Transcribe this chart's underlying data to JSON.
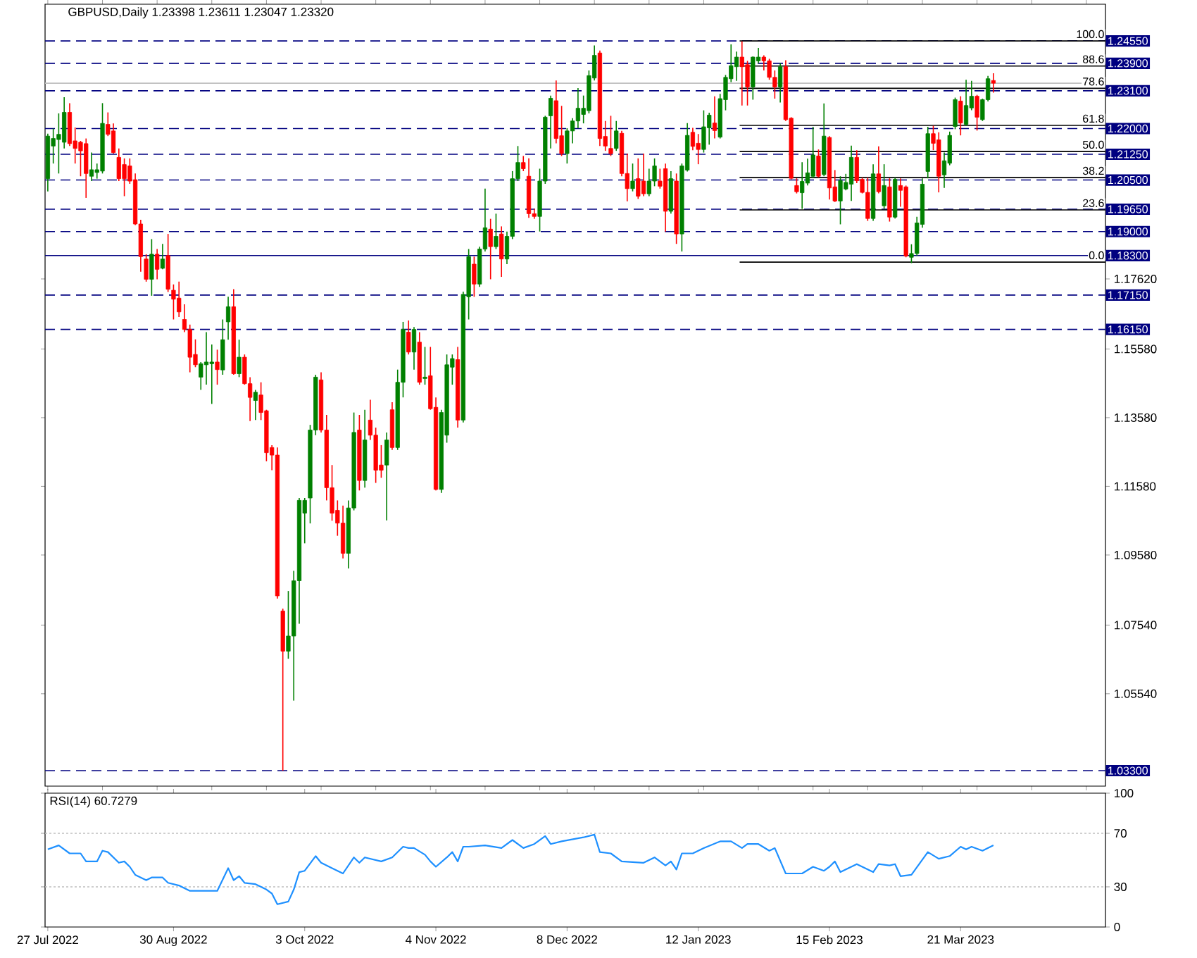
{
  "chart_data": [
    {
      "type": "candlestick",
      "title": "GBPUSD,Daily  1.23398 1.23611 1.23047 1.23320",
      "categories": [
        null,
        null,
        null,
        null,
        null,
        null,
        null,
        null,
        null,
        null,
        null,
        null,
        null,
        null,
        null,
        null,
        null,
        null,
        null,
        null,
        null,
        null,
        null,
        null,
        null,
        null,
        null,
        null,
        null,
        null,
        null,
        null,
        null,
        null,
        null,
        null,
        null,
        null,
        null,
        null,
        null,
        null,
        null,
        null,
        null,
        null,
        null,
        null,
        null,
        null,
        null,
        null,
        null,
        null,
        null,
        null,
        null,
        null,
        null,
        null,
        null,
        null,
        null,
        null,
        null,
        null,
        null,
        null,
        null,
        null,
        null,
        null,
        null,
        null,
        null,
        null,
        null,
        null,
        null,
        null,
        null,
        null,
        null,
        null,
        null,
        null,
        null,
        null,
        null,
        null,
        null,
        null,
        null,
        null,
        null,
        null,
        null,
        null,
        null,
        null,
        null,
        null,
        null,
        null,
        null,
        null,
        null,
        null,
        null,
        null,
        null,
        null,
        null,
        null,
        null,
        null,
        null,
        null,
        null,
        null,
        null,
        null,
        null,
        null,
        null,
        null,
        null,
        null,
        null,
        null,
        null,
        null,
        null,
        null,
        null,
        null,
        null,
        null,
        null,
        null,
        null,
        null,
        null,
        null,
        null,
        null,
        null,
        null,
        null,
        null,
        null,
        null,
        null,
        null,
        null,
        null,
        null,
        null,
        null,
        null,
        null,
        null,
        null,
        null,
        null,
        null,
        null,
        null,
        null,
        null,
        null,
        null,
        null,
        null,
        null,
        null,
        null,
        null,
        null,
        null,
        null,
        null,
        null,
        null,
        null,
        null,
        null,
        null,
        null,
        null,
        null,
        null,
        null,
        null
      ],
      "ohlc": [
        [
          1.2054,
          1.2185,
          1.2017,
          1.2178
        ],
        [
          1.2149,
          1.22,
          1.2098,
          1.2171
        ],
        [
          1.2168,
          1.2244,
          1.2069,
          1.2183
        ],
        [
          1.216,
          1.2291,
          1.2142,
          1.2247
        ],
        [
          1.2247,
          1.2274,
          1.2149,
          1.2156
        ],
        [
          1.2164,
          1.2203,
          1.2098,
          1.2142
        ],
        [
          1.216,
          1.2164,
          1.2061,
          1.2135
        ],
        [
          1.2156,
          1.2171,
          1.1998,
          1.2069
        ],
        [
          1.2061,
          1.213,
          1.2047,
          1.208
        ],
        [
          1.2072,
          1.2098,
          1.2054,
          1.208
        ],
        [
          1.2076,
          1.2274,
          1.2069,
          1.2215
        ],
        [
          1.2212,
          1.2247,
          1.2178,
          1.2183
        ],
        [
          1.2193,
          1.2215,
          1.2127,
          1.213
        ],
        [
          1.2116,
          1.2142,
          1.2047,
          1.2054
        ],
        [
          1.2095,
          1.2113,
          1.2003,
          1.2054
        ],
        [
          1.2091,
          1.2113,
          1.2039,
          1.2047
        ],
        [
          1.2051,
          1.2069,
          1.1919,
          1.1922
        ],
        [
          1.1922,
          1.1934,
          1.1783,
          1.1827
        ],
        [
          1.182,
          1.1834,
          1.1754,
          1.1761
        ],
        [
          1.1761,
          1.1878,
          1.1713,
          1.1834
        ],
        [
          1.1834,
          1.1849,
          1.1761,
          1.179
        ],
        [
          1.1793,
          1.1864,
          1.179,
          1.182
        ],
        [
          1.183,
          1.1893,
          1.1724,
          1.1732
        ],
        [
          1.1729,
          1.1746,
          1.1644,
          1.1703
        ],
        [
          1.1706,
          1.1754,
          1.1651,
          1.1666
        ],
        [
          1.1644,
          1.1688,
          1.1607,
          1.1615
        ],
        [
          1.1615,
          1.1629,
          1.149,
          1.1534
        ],
        [
          1.1542,
          1.1586,
          1.1505,
          1.1512
        ],
        [
          1.1476,
          1.152,
          1.1439,
          1.1515
        ],
        [
          1.1512,
          1.1607,
          1.1454,
          1.152
        ],
        [
          1.1515,
          1.1571,
          1.1398,
          1.152
        ],
        [
          1.152,
          1.1556,
          1.1454,
          1.1498
        ],
        [
          1.1497,
          1.1644,
          1.1483,
          1.1585
        ],
        [
          1.1637,
          1.171,
          1.1585,
          1.1681
        ],
        [
          1.1681,
          1.1732,
          1.1483,
          1.1486
        ],
        [
          1.1486,
          1.1585,
          1.1476,
          1.1534
        ],
        [
          1.1534,
          1.1542,
          1.1454,
          1.1457
        ],
        [
          1.1457,
          1.1476,
          1.1348,
          1.1417
        ],
        [
          1.1408,
          1.1439,
          1.1351,
          1.1432
        ],
        [
          1.1424,
          1.1461,
          1.1351,
          1.1373
        ],
        [
          1.1378,
          1.1381,
          1.1231,
          1.1256
        ],
        [
          1.1271,
          1.1278,
          1.1205,
          1.1249
        ],
        [
          1.1249,
          1.1271,
          1.0831,
          1.0839
        ],
        [
          1.0795,
          1.0802,
          1.033,
          1.0678
        ],
        [
          1.0678,
          1.0853,
          1.0656,
          1.0722
        ],
        [
          1.0722,
          1.0912,
          1.0534,
          1.0883
        ],
        [
          1.0883,
          1.1124,
          1.0758,
          1.1117
        ],
        [
          1.108,
          1.1124,
          1.0992,
          1.1117
        ],
        [
          1.1124,
          1.1337,
          1.105,
          1.1322
        ],
        [
          1.1322,
          1.1483,
          1.1307,
          1.1476
        ],
        [
          1.1468,
          1.149,
          1.1315,
          1.1322
        ],
        [
          1.1322,
          1.1366,
          1.1117,
          1.1154
        ],
        [
          1.1154,
          1.122,
          1.1058,
          1.108
        ],
        [
          1.1088,
          1.1117,
          1.1014,
          1.1051
        ],
        [
          1.1051,
          1.1102,
          1.0948,
          1.0963
        ],
        [
          1.0963,
          1.1117,
          1.0919,
          1.1095
        ],
        [
          1.1095,
          1.1373,
          1.1088,
          1.1315
        ],
        [
          1.1322,
          1.1366,
          1.1146,
          1.1175
        ],
        [
          1.1175,
          1.1381,
          1.1154,
          1.1293
        ],
        [
          1.1351,
          1.141,
          1.1293,
          1.1307
        ],
        [
          1.1307,
          1.1329,
          1.1168,
          1.1205
        ],
        [
          1.122,
          1.1278,
          1.1183,
          1.1205
        ],
        [
          1.122,
          1.1315,
          1.1059,
          1.1293
        ],
        [
          1.1381,
          1.1403,
          1.1264,
          1.1271
        ],
        [
          1.1271,
          1.1498,
          1.1264,
          1.1461
        ],
        [
          1.1461,
          1.1637,
          1.1417,
          1.1615
        ],
        [
          1.1607,
          1.1641,
          1.1542,
          1.1549
        ],
        [
          1.1549,
          1.1622,
          1.1498,
          1.1615
        ],
        [
          1.1578,
          1.1607,
          1.1454,
          1.1461
        ],
        [
          1.1472,
          1.1564,
          1.1454,
          1.1476
        ],
        [
          1.148,
          1.1564,
          1.1381,
          1.1384
        ],
        [
          1.1388,
          1.1417,
          1.1146,
          1.1149
        ],
        [
          1.1149,
          1.1381,
          1.1139,
          1.1373
        ],
        [
          1.1307,
          1.1542,
          1.1285,
          1.1512
        ],
        [
          1.1505,
          1.1542,
          1.1454,
          1.153
        ],
        [
          1.1527,
          1.1564,
          1.1329,
          1.1351
        ],
        [
          1.1351,
          1.1725,
          1.1344,
          1.1717
        ],
        [
          1.171,
          1.1849,
          1.1644,
          1.1827
        ],
        [
          1.1805,
          1.1827,
          1.171,
          1.1747
        ],
        [
          1.1747,
          1.1856,
          1.1739,
          1.1849
        ],
        [
          1.1849,
          1.2025,
          1.1842,
          1.1911
        ],
        [
          1.1907,
          1.1937,
          1.1761,
          1.1856
        ],
        [
          1.1856,
          1.1952,
          1.1849,
          1.1886
        ],
        [
          1.1893,
          1.1915,
          1.1768,
          1.182
        ],
        [
          1.182,
          1.19,
          1.1805,
          1.1886
        ],
        [
          1.1886,
          1.2076,
          1.1878,
          1.2054
        ],
        [
          1.2054,
          1.2149,
          1.2047,
          1.2101
        ],
        [
          1.2101,
          1.212,
          1.2076,
          1.2083
        ],
        [
          1.2061,
          1.2113,
          1.194,
          1.1952
        ],
        [
          1.1952,
          1.1966,
          1.1937,
          1.1944
        ],
        [
          1.1944,
          1.2083,
          1.19,
          1.2047
        ],
        [
          1.2047,
          1.2237,
          1.2039,
          1.2233
        ],
        [
          1.2237,
          1.2296,
          1.2142,
          1.2288
        ],
        [
          1.2281,
          1.234,
          1.2157,
          1.2171
        ],
        [
          1.2179,
          1.2266,
          1.212,
          1.2127
        ],
        [
          1.2127,
          1.2201,
          1.2098,
          1.2193
        ],
        [
          1.2193,
          1.223,
          1.2157,
          1.2222
        ],
        [
          1.2222,
          1.2318,
          1.2201,
          1.2259
        ],
        [
          1.2241,
          1.2296,
          1.2215,
          1.2259
        ],
        [
          1.2252,
          1.2369,
          1.2244,
          1.2354
        ],
        [
          1.2347,
          1.2442,
          1.234,
          1.2413
        ],
        [
          1.242,
          1.2427,
          1.2149,
          1.2171
        ],
        [
          1.2177,
          1.2222,
          1.2135,
          1.2149
        ],
        [
          1.2142,
          1.2237,
          1.212,
          1.2127
        ],
        [
          1.2142,
          1.2222,
          1.2135,
          1.2193
        ],
        [
          1.2186,
          1.2193,
          1.2061,
          1.2069
        ],
        [
          1.2069,
          1.2127,
          1.1988,
          1.2025
        ],
        [
          1.2025,
          1.2098,
          1.2017,
          1.2047
        ],
        [
          1.2054,
          1.2113,
          1.1995,
          1.2003
        ],
        [
          1.2047,
          1.2127,
          1.2003,
          1.201
        ],
        [
          1.201,
          1.2083,
          1.2003,
          1.2047
        ],
        [
          1.2047,
          1.2113,
          1.2032,
          1.2091
        ],
        [
          1.2047,
          1.2083,
          1.2025,
          1.2032
        ],
        [
          1.2083,
          1.2098,
          1.19,
          1.1959
        ],
        [
          1.1959,
          1.2076,
          1.1952,
          1.2054
        ],
        [
          1.2047,
          1.2069,
          1.1864,
          1.1893
        ],
        [
          1.1893,
          1.2098,
          1.1842,
          1.2091
        ],
        [
          1.2079,
          1.2216,
          1.2075,
          1.218
        ],
        [
          1.2189,
          1.2202,
          1.2137,
          1.2148
        ],
        [
          1.2157,
          1.2184,
          1.2096,
          1.2139
        ],
        [
          1.2139,
          1.2253,
          1.213,
          1.2205
        ],
        [
          1.2202,
          1.2246,
          1.2153,
          1.2239
        ],
        [
          1.2216,
          1.2294,
          1.2171,
          1.2194
        ],
        [
          1.2175,
          1.2301,
          1.2171,
          1.2287
        ],
        [
          1.2284,
          1.2356,
          1.2253,
          1.2349
        ],
        [
          1.2345,
          1.2445,
          1.2335,
          1.2383
        ],
        [
          1.238,
          1.2424,
          1.2339,
          1.2408
        ],
        [
          1.2408,
          1.2454,
          1.2267,
          1.238
        ],
        [
          1.2386,
          1.2397,
          1.2267,
          1.2321
        ],
        [
          1.2321,
          1.241,
          1.2284,
          1.2408
        ],
        [
          1.2397,
          1.2435,
          1.239,
          1.2408
        ],
        [
          1.2408,
          1.2413,
          1.2369,
          1.2397
        ],
        [
          1.2397,
          1.2403,
          1.2342,
          1.2349
        ],
        [
          1.2349,
          1.2369,
          1.2287,
          1.2321
        ],
        [
          1.2321,
          1.239,
          1.2276,
          1.238
        ],
        [
          1.238,
          1.2399,
          1.2222,
          1.2226
        ],
        [
          1.223,
          1.2233,
          1.2052,
          1.2055
        ],
        [
          1.2034,
          1.2055,
          1.2011,
          1.2016
        ],
        [
          1.2013,
          1.2102,
          1.1966,
          1.2046
        ],
        [
          1.2041,
          1.2112,
          1.2034,
          1.2071
        ],
        [
          1.2061,
          1.2205,
          1.2055,
          1.2123
        ],
        [
          1.212,
          1.2139,
          1.2057,
          1.2061
        ],
        [
          1.2066,
          1.2273,
          1.2061,
          1.2178
        ],
        [
          1.2174,
          1.2178,
          1.1993,
          1.2027
        ],
        [
          1.203,
          1.2079,
          1.1986,
          1.1989
        ],
        [
          1.1989,
          1.2061,
          1.1921,
          1.2048
        ],
        [
          1.2024,
          1.2068,
          1.202,
          1.2043
        ],
        [
          1.2038,
          1.215,
          1.1989,
          1.2116
        ],
        [
          1.2116,
          1.2137,
          1.2041,
          1.2048
        ],
        [
          1.2052,
          1.2057,
          1.2011,
          1.2014
        ],
        [
          1.2014,
          1.2057,
          1.1931,
          1.1938
        ],
        [
          1.1938,
          1.2096,
          1.1931,
          1.2068
        ],
        [
          1.2068,
          1.2148,
          1.2011,
          1.2016
        ],
        [
          1.1975,
          1.2096,
          1.1966,
          1.2034
        ],
        [
          1.203,
          1.2055,
          1.1929,
          1.1942
        ],
        [
          1.1942,
          1.2057,
          1.1938,
          1.2052
        ],
        [
          1.2034,
          1.2055,
          1.1972,
          1.202
        ],
        [
          1.203,
          1.2034,
          1.1825,
          1.1829
        ],
        [
          1.1825,
          1.1863,
          1.1808,
          1.1836
        ],
        [
          1.1836,
          1.1943,
          1.1829,
          1.1925
        ],
        [
          1.1921,
          1.2055,
          1.1911,
          1.2038
        ],
        [
          1.2075,
          1.2205,
          1.2055,
          1.2185
        ],
        [
          1.2185,
          1.2208,
          1.2137,
          1.2157
        ],
        [
          1.2167,
          1.2189,
          1.2014,
          1.2061
        ],
        [
          1.2065,
          1.213,
          1.2027,
          1.2106
        ],
        [
          1.2099,
          1.2191,
          1.2093,
          1.218
        ],
        [
          1.2206,
          1.229,
          1.2198,
          1.2284
        ],
        [
          1.228,
          1.2294,
          1.218,
          1.2216
        ],
        [
          1.2212,
          1.2342,
          1.2208,
          1.2267
        ],
        [
          1.226,
          1.2339,
          1.2253,
          1.2294
        ],
        [
          1.2294,
          1.2298,
          1.2194,
          1.2233
        ],
        [
          1.2226,
          1.2287,
          1.2222,
          1.2284
        ],
        [
          1.2284,
          1.2353,
          1.2279,
          1.2345
        ],
        [
          1.23398,
          1.23611,
          1.23047,
          1.2332
        ],
        null,
        null,
        null,
        null,
        null,
        null,
        null,
        null,
        null,
        null,
        null,
        null,
        null,
        null,
        null,
        null,
        null,
        null,
        null,
        null
      ],
      "ylim": [
        1.0285,
        1.2562
      ],
      "yticks": [
        {
          "value": 1.0554,
          "label": "1.05540"
        },
        {
          "value": 1.0754,
          "label": "1.07540"
        },
        {
          "value": 1.0958,
          "label": "1.09580"
        },
        {
          "value": 1.1158,
          "label": "1.11580"
        },
        {
          "value": 1.1358,
          "label": "1.13580"
        },
        {
          "value": 1.1558,
          "label": "1.15580"
        },
        {
          "value": 1.1762,
          "label": "1.17620"
        }
      ],
      "ref_lines": [
        {
          "axis": "y",
          "value": 1.2455,
          "label": "1.24550",
          "color": "#000080",
          "line_style": "dashed"
        },
        {
          "axis": "y",
          "value": 1.239,
          "label": "1.23900",
          "color": "#000080",
          "line_style": "dashed"
        },
        {
          "axis": "y",
          "value": 1.231,
          "label": "1.23100",
          "color": "#000080",
          "line_style": "dashed"
        },
        {
          "axis": "y",
          "value": 1.22,
          "label": "1.22000",
          "color": "#000080",
          "line_style": "dashed"
        },
        {
          "axis": "y",
          "value": 1.2125,
          "label": "1.21250",
          "color": "#000080",
          "line_style": "dashed"
        },
        {
          "axis": "y",
          "value": 1.205,
          "label": "1.20500",
          "color": "#000080",
          "line_style": "dashed"
        },
        {
          "axis": "y",
          "value": 1.1965,
          "label": "1.19650",
          "color": "#000080",
          "line_style": "dashed"
        },
        {
          "axis": "y",
          "value": 1.19,
          "label": "1.19000",
          "color": "#000080",
          "line_style": "dashed"
        },
        {
          "axis": "y",
          "value": 1.183,
          "label": "1.18300",
          "color": "#000080",
          "line_style": "solid"
        },
        {
          "axis": "y",
          "value": 1.1715,
          "label": "1.17150",
          "color": "#000080",
          "line_style": "dashed"
        },
        {
          "axis": "y",
          "value": 1.1615,
          "label": "1.16150",
          "color": "#000080",
          "line_style": "dashed"
        },
        {
          "axis": "y",
          "value": 1.033,
          "label": "1.03300",
          "color": "#000080",
          "line_style": "dashed"
        },
        {
          "axis": "y",
          "value": 1.2332,
          "color": "#c0c0c0",
          "line_style": "solid"
        },
        {
          "axis": "y",
          "value": 1.2455,
          "color": "#000000",
          "line_style": "solid"
        },
        {
          "axis": "y",
          "value": 1.2382,
          "color": "#000000",
          "line_style": "solid"
        },
        {
          "axis": "y",
          "value": 1.2317,
          "color": "#000000",
          "line_style": "solid"
        },
        {
          "axis": "y",
          "value": 1.2209,
          "color": "#000000",
          "line_style": "solid"
        },
        {
          "axis": "y",
          "value": 1.2133,
          "color": "#000000",
          "line_style": "solid"
        },
        {
          "axis": "y",
          "value": 1.2057,
          "color": "#000000",
          "line_style": "solid"
        },
        {
          "axis": "y",
          "value": 1.1963,
          "color": "#000000",
          "line_style": "solid"
        },
        {
          "axis": "y",
          "value": 1.1811,
          "color": "#000000",
          "line_style": "solid"
        }
      ],
      "annotations": [
        {
          "text": "100.0",
          "y": 1.2455
        },
        {
          "text": "88.6",
          "y": 1.2382
        },
        {
          "text": "78.6",
          "y": 1.2317
        },
        {
          "text": "61.8",
          "y": 1.2209
        },
        {
          "text": "50.0",
          "y": 1.2133
        },
        {
          "text": "38.2",
          "y": 1.2057
        },
        {
          "text": "23.6",
          "y": 1.1963
        },
        {
          "text": "0.0",
          "y": 1.1811
        }
      ]
    },
    {
      "type": "line",
      "title": "RSI(14) 60.7279",
      "categories": [
        "27 Jul 2022",
        null,
        null,
        null,
        null,
        null,
        null,
        null,
        null,
        null,
        null,
        null,
        null,
        null,
        null,
        null,
        null,
        null,
        null,
        null,
        null,
        null,
        null,
        "30 Aug 2022",
        null,
        null,
        null,
        null,
        null,
        null,
        null,
        null,
        null,
        null,
        null,
        null,
        null,
        null,
        null,
        null,
        null,
        null,
        null,
        null,
        null,
        null,
        null,
        "3 Oct 2022",
        null,
        null,
        null,
        null,
        null,
        null,
        null,
        null,
        null,
        null,
        null,
        null,
        null,
        null,
        null,
        null,
        null,
        null,
        null,
        null,
        null,
        null,
        null,
        "4 Nov 2022",
        null,
        null,
        null,
        null,
        null,
        null,
        null,
        null,
        null,
        null,
        null,
        null,
        null,
        null,
        null,
        null,
        null,
        null,
        null,
        null,
        null,
        null,
        null,
        "8 Dec 2022",
        null,
        null,
        null,
        null,
        null,
        null,
        null,
        null,
        null,
        null,
        null,
        null,
        null,
        null,
        null,
        null,
        null,
        null,
        null,
        null,
        null,
        null,
        null,
        "12 Jan 2023",
        null,
        null,
        null,
        null,
        null,
        null,
        null,
        null,
        null,
        null,
        null,
        null,
        null,
        null,
        null,
        null,
        null,
        null,
        null,
        null,
        null,
        null,
        null,
        "15 Feb 2023",
        null,
        null,
        null,
        null,
        null,
        null,
        null,
        null,
        null,
        null,
        null,
        null,
        null,
        null,
        null,
        null,
        null,
        null,
        null,
        null,
        null,
        null,
        null,
        "21 Mar 2023",
        null,
        null,
        null,
        null,
        null,
        null,
        null,
        null,
        null,
        null,
        null,
        null,
        null,
        null,
        null,
        null,
        null,
        null,
        null,
        null,
        null,
        null,
        null,
        null,
        null,
        null
      ],
      "series": [
        {
          "color": "#1e90ff",
          "values": [
            58,
            null,
            61,
            null,
            55,
            null,
            55,
            49,
            null,
            49,
            57,
            56,
            null,
            48,
            49,
            45,
            39,
            null,
            35,
            37,
            null,
            37,
            33,
            null,
            31,
            null,
            27,
            null,
            null,
            null,
            null,
            27,
            null,
            44,
            35,
            38,
            33,
            null,
            32,
            null,
            28,
            25,
            17,
            null,
            19,
            28,
            41,
            42,
            null,
            53,
            48,
            null,
            44,
            null,
            40,
            null,
            52,
            48,
            52,
            null,
            null,
            49,
            null,
            52,
            null,
            60,
            59,
            59,
            null,
            54,
            49,
            45,
            null,
            52,
            56,
            49,
            60,
            60,
            null,
            null,
            61,
            null,
            null,
            59,
            null,
            65,
            null,
            59,
            null,
            62,
            null,
            68,
            62,
            null,
            64,
            null,
            null,
            null,
            67,
            null,
            69,
            56,
            null,
            55,
            null,
            49,
            null,
            null,
            null,
            48,
            null,
            52,
            null,
            46,
            49,
            43,
            55,
            null,
            55,
            null,
            59,
            null,
            null,
            64,
            null,
            64,
            null,
            59,
            62,
            null,
            62,
            null,
            57,
            59,
            null,
            40,
            null,
            null,
            40,
            null,
            45,
            null,
            42,
            45,
            49,
            41,
            43,
            null,
            47,
            null,
            43,
            41,
            47,
            null,
            46,
            47,
            38,
            null,
            39,
            null,
            null,
            56,
            null,
            51,
            null,
            53,
            null,
            60,
            58,
            60,
            null,
            57,
            null,
            61,
            null,
            null,
            null,
            null,
            null,
            null,
            null,
            null,
            null,
            null,
            null,
            null,
            null,
            null,
            null,
            null,
            null,
            null,
            null,
            null
          ]
        }
      ],
      "ylim": [
        0,
        100
      ],
      "yticks": [
        0,
        30,
        70,
        100
      ],
      "ref_lines": [
        {
          "axis": "y",
          "value": 70,
          "color": "#c0c0c0",
          "line_style": "dotted"
        },
        {
          "axis": "y",
          "value": 30,
          "color": "#c0c0c0",
          "line_style": "dotted"
        }
      ]
    }
  ]
}
